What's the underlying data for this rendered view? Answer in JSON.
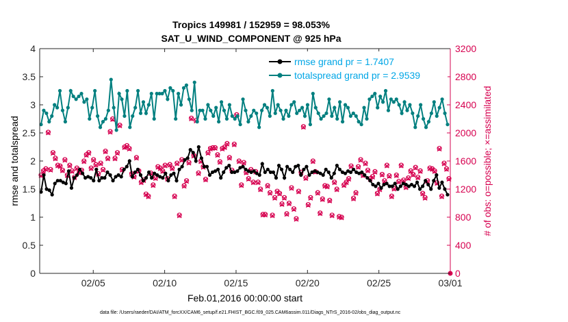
{
  "chart_data": {
    "type": "line",
    "title_line1": "Tropics 149981 / 152959 = 98.053%",
    "title_line2": "SAT_U_WIND_COMPONENT @ 925 hPa",
    "xlabel": "Feb.01,2016 00:00:00 start",
    "ylabel_left": "rmse and totalspread",
    "ylabel_right": "# of obs: o=possible; ×=assimilated",
    "footnote": "data file: /Users/raeder/DAI/ATM_forcXX/CAM6_setup/f.e21.FHIST_BGC.f09_025.CAM6assim.011/Diags_NTrS_2016-02/obs_diag_output.nc",
    "x_ticks": [
      {
        "day": 4,
        "label": "02/05"
      },
      {
        "day": 9,
        "label": "02/10"
      },
      {
        "day": 14,
        "label": "02/15"
      },
      {
        "day": 19,
        "label": "02/20"
      },
      {
        "day": 24,
        "label": "02/25"
      },
      {
        "day": 29,
        "label": "03/01"
      }
    ],
    "xlim": [
      0.25,
      29.0
    ],
    "ylim_left": [
      0,
      4
    ],
    "yticks_left": [
      "0",
      "0.5",
      "1",
      "1.5",
      "2",
      "2.5",
      "3",
      "3.5",
      "4"
    ],
    "ylim_right": [
      0,
      3200
    ],
    "yticks_right": [
      "0",
      "400",
      "800",
      "1200",
      "1600",
      "2000",
      "2400",
      "2800",
      "3200"
    ],
    "legend": [
      {
        "label": "rmse grand pr = 1.7407",
        "color": "#000000"
      },
      {
        "label": "totalspread grand pr = 2.9539",
        "color": "#007f7f"
      }
    ],
    "obs_color": "#d6004f",
    "series": [
      {
        "name": "rmse",
        "color": "#000000",
        "values": [
          1.45,
          1.75,
          1.5,
          1.48,
          1.4,
          1.6,
          1.65,
          1.65,
          1.62,
          1.6,
          1.82,
          1.52,
          1.7,
          1.75,
          1.85,
          1.78,
          1.7,
          1.72,
          1.7,
          1.65,
          1.85,
          1.65,
          1.7,
          1.7,
          1.8,
          1.75,
          1.65,
          1.72,
          1.75,
          1.72,
          1.85,
          1.9,
          2.0,
          1.72,
          1.8,
          1.85,
          1.75,
          1.65,
          1.7,
          1.8,
          1.7,
          1.78,
          1.75,
          1.72,
          1.7,
          1.78,
          1.65,
          1.75,
          1.78,
          1.65,
          1.85,
          1.9,
          2.02,
          2.05,
          2.2,
          2.15,
          2.0,
          2.25,
          2.05,
          1.9,
          1.9,
          1.75,
          1.8,
          1.82,
          1.85,
          1.7,
          1.8,
          1.88,
          1.92,
          1.8,
          1.8,
          1.82,
          1.88,
          1.9,
          1.85,
          1.82,
          1.8,
          1.82,
          1.78,
          1.75,
          1.95,
          1.8,
          1.85,
          1.8,
          1.8,
          1.7,
          1.92,
          1.85,
          1.7,
          1.9,
          1.85,
          1.8,
          1.9,
          1.92,
          1.75,
          1.85,
          1.9,
          1.75,
          1.8,
          1.82,
          1.8,
          1.78,
          1.75,
          1.85,
          1.8,
          1.7,
          1.78,
          1.92,
          1.85,
          1.8,
          1.78,
          1.82,
          1.8,
          1.85,
          1.8,
          1.78,
          1.8,
          1.75,
          1.7,
          1.65,
          1.58,
          1.55,
          1.6,
          1.52,
          1.58,
          1.6,
          1.55,
          1.55,
          1.6,
          1.5,
          1.55,
          1.6,
          1.58,
          1.55,
          1.58,
          1.55,
          1.62,
          1.5,
          1.55,
          1.65,
          1.58,
          1.5,
          1.65,
          1.75,
          1.52,
          1.62,
          1.5,
          1.4
        ]
      },
      {
        "name": "totalspread",
        "color": "#007f7f",
        "values": [
          2.65,
          2.9,
          2.85,
          2.7,
          2.8,
          3.0,
          2.95,
          3.25,
          2.9,
          2.7,
          2.95,
          3.25,
          3.15,
          3.1,
          3.15,
          3.2,
          3.05,
          3.1,
          2.75,
          2.95,
          3.25,
          2.8,
          2.6,
          2.7,
          2.75,
          2.9,
          3.45,
          2.95,
          2.55,
          3.2,
          3.1,
          2.8,
          3.25,
          2.6,
          2.8,
          2.95,
          3.25,
          2.85,
          3.05,
          2.85,
          3.0,
          3.2,
          2.75,
          3.2,
          3.2,
          3.2,
          3.25,
          3.1,
          3.3,
          3.25,
          2.75,
          3.2,
          3.0,
          3.3,
          3.35,
          3.1,
          2.9,
          3.4,
          2.7,
          2.9,
          2.9,
          2.75,
          3.0,
          2.9,
          2.8,
          2.95,
          2.7,
          3.05,
          2.9,
          2.75,
          3.0,
          2.8,
          2.75,
          2.8,
          2.65,
          3.1,
          2.9,
          2.7,
          2.8,
          2.9,
          2.85,
          2.6,
          2.9,
          3.0,
          2.95,
          2.8,
          3.25,
          2.85,
          3.0,
          2.9,
          2.75,
          2.9,
          2.8,
          3.0,
          3.05,
          2.85,
          2.9,
          2.95,
          2.8,
          3.0,
          2.65,
          3.2,
          2.95,
          2.85,
          2.75,
          2.8,
          2.85,
          3.1,
          2.8,
          2.95,
          2.75,
          3.05,
          2.7,
          3.0,
          2.95,
          2.8,
          2.85,
          2.8,
          2.7,
          2.65,
          2.95,
          2.75,
          3.1,
          3.15,
          3.2,
          2.95,
          3.15,
          3.05,
          3.25,
          2.9,
          3.1,
          3.05,
          3.1,
          3.0,
          2.85,
          3.05,
          2.9,
          3.0,
          2.85,
          2.6,
          2.8,
          3.0,
          2.75,
          2.6,
          2.7,
          2.85,
          3.05,
          2.8,
          2.95,
          3.1,
          2.85,
          2.65
        ]
      },
      {
        "name": "obs_possible",
        "color": "#d6004f",
        "values": [
          1400,
          1460,
          1490,
          2010,
          1480,
          1720,
          1640,
          1540,
          1530,
          1470,
          1620,
          1400,
          1540,
          1460,
          1370,
          1500,
          1440,
          1470,
          1600,
          1690,
          1720,
          1500,
          1620,
          1550,
          1420,
          1570,
          1480,
          1740,
          1640,
          2020,
          2200,
          1640,
          1720,
          2110,
          1480,
          1800,
          1820,
          1780,
          1420,
          1380,
          1650,
          1460,
          1300,
          1330,
          1130,
          1100,
          1430,
          1260,
          1360,
          1520,
          1500,
          1460,
          1540,
          1350,
          1550,
          1500,
          1100,
          1570,
          830,
          1620,
          1250,
          1320,
          1580,
          2210,
          1680,
          2180,
          1430,
          1600,
          1520,
          1340,
          1720,
          1780,
          1790,
          1790,
          1690,
          1590,
          1780,
          1800,
          1850,
          1650,
          1470,
          1840,
          2260,
          1600,
          1260,
          1580,
          1440,
          1350,
          1480,
          1300,
          1450,
          1300,
          1200,
          840,
          840,
          1250,
          1150,
          830,
          1080,
          1170,
          1140,
          990,
          1080,
          850,
          1000,
          1220,
          920,
          780,
          1170,
          1440,
          2090,
          1360,
          980,
          1080,
          1600,
          1450,
          1150,
          860,
          1060,
          1250,
          1240,
          1040,
          830,
          1300,
          1200,
          810,
          800,
          1260,
          1300,
          1350,
          1530,
          1070,
          1150,
          1520,
          1620,
          1400,
          1570,
          1470,
          1350,
          1380,
          1450,
          1140,
          1200,
          1410,
          1320,
          1540,
          1390,
          1100,
          1210,
          1400,
          1310,
          1540,
          1330,
          1230,
          1360,
          1460,
          1410,
          1510,
          1370,
          1460,
          1140,
          1080,
          1320,
          1500,
          1490,
          1460,
          1290,
          1780,
          1100,
          1570,
          1490,
          1350
        ]
      },
      {
        "name": "obs_assimilated",
        "color": "#d6004f",
        "values": [
          1390,
          1450,
          1480,
          2000,
          1470,
          1710,
          1630,
          1530,
          1520,
          1460,
          1610,
          1390,
          1530,
          1450,
          1360,
          1490,
          1430,
          1460,
          1590,
          1680,
          1710,
          1490,
          1610,
          1540,
          1410,
          1560,
          1470,
          1730,
          1630,
          2010,
          2190,
          1630,
          1710,
          2100,
          1470,
          1790,
          1810,
          1770,
          1410,
          1370,
          1640,
          1450,
          1290,
          1320,
          1120,
          1090,
          1420,
          1250,
          1350,
          1510,
          1490,
          1450,
          1530,
          1340,
          1540,
          1490,
          1090,
          1560,
          820,
          1610,
          1240,
          1310,
          1570,
          2200,
          1670,
          2170,
          1420,
          1590,
          1510,
          1330,
          1710,
          1770,
          1780,
          1780,
          1680,
          1580,
          1770,
          1790,
          1840,
          1640,
          1460,
          1830,
          2250,
          1590,
          1250,
          1570,
          1430,
          1340,
          1470,
          1290,
          1440,
          1290,
          1190,
          830,
          830,
          1240,
          1140,
          820,
          1070,
          1160,
          1130,
          980,
          1070,
          840,
          990,
          1210,
          910,
          770,
          1160,
          1430,
          2080,
          1350,
          970,
          1070,
          1590,
          1440,
          1140,
          850,
          1050,
          1240,
          1230,
          1030,
          820,
          1290,
          1190,
          800,
          790,
          1250,
          1290,
          1340,
          1520,
          1060,
          1140,
          1510,
          1610,
          1390,
          1560,
          1460,
          1340,
          1370,
          1440,
          1130,
          1190,
          1400,
          1310,
          1530,
          1380,
          1090,
          1200,
          1390,
          1300,
          1530,
          1320,
          1220,
          1350,
          1450,
          1400,
          1500,
          1360,
          1450,
          1130,
          1070,
          1310,
          1490,
          1480,
          1450,
          1280,
          1770,
          1090,
          1560,
          1480,
          1340
        ]
      }
    ],
    "obs_final_point": 0
  }
}
